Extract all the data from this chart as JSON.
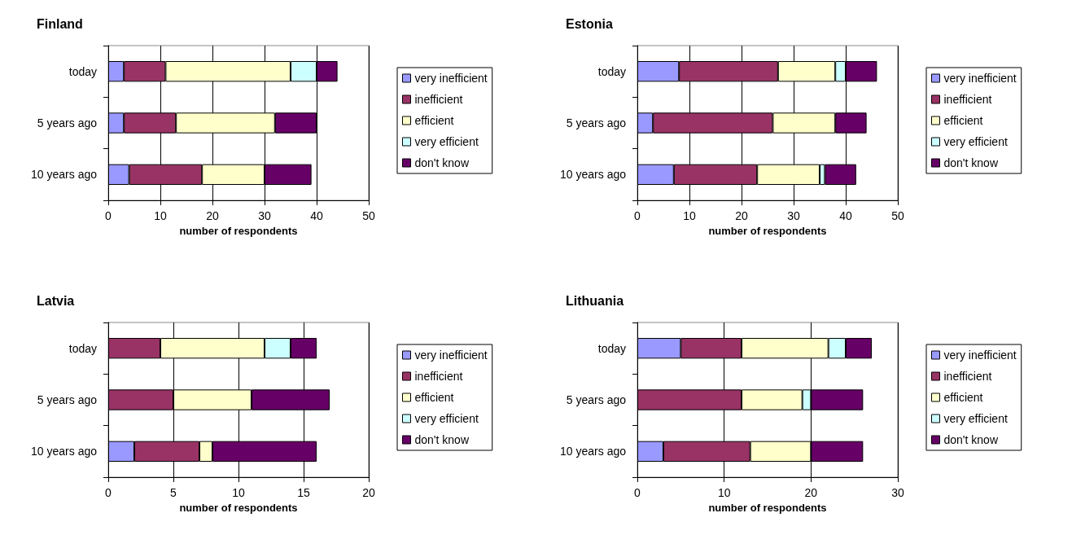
{
  "chart_data": [
    {
      "type": "bar",
      "title": "Finland",
      "orientation": "horizontal",
      "stacked": true,
      "categories": [
        "today",
        "5 years ago",
        "10 years ago"
      ],
      "xlabel": "number of respondents",
      "xlim": [
        0,
        50
      ],
      "xticks": [
        0,
        10,
        20,
        30,
        40,
        50
      ],
      "grid": "x",
      "legend": "right",
      "series": [
        {
          "name": "very inefficient",
          "color": "#9999ff",
          "values": [
            3,
            3,
            4
          ]
        },
        {
          "name": "inefficient",
          "color": "#993366",
          "values": [
            8,
            10,
            14
          ]
        },
        {
          "name": "efficient",
          "color": "#ffffcc",
          "values": [
            24,
            19,
            12
          ]
        },
        {
          "name": "very efficient",
          "color": "#ccffff",
          "values": [
            5,
            0,
            0
          ]
        },
        {
          "name": "don't know",
          "color": "#660066",
          "values": [
            4,
            8,
            9
          ]
        }
      ]
    },
    {
      "type": "bar",
      "title": "Estonia",
      "orientation": "horizontal",
      "stacked": true,
      "categories": [
        "today",
        "5 years ago",
        "10 years ago"
      ],
      "xlabel": "number of respondents",
      "xlim": [
        0,
        50
      ],
      "xticks": [
        0,
        10,
        20,
        30,
        40,
        50
      ],
      "grid": "x",
      "legend": "right",
      "series": [
        {
          "name": "very inefficient",
          "color": "#9999ff",
          "values": [
            8,
            3,
            7
          ]
        },
        {
          "name": "inefficient",
          "color": "#993366",
          "values": [
            19,
            23,
            16
          ]
        },
        {
          "name": "efficient",
          "color": "#ffffcc",
          "values": [
            11,
            12,
            12
          ]
        },
        {
          "name": "very efficient",
          "color": "#ccffff",
          "values": [
            2,
            0,
            1
          ]
        },
        {
          "name": "don't know",
          "color": "#660066",
          "values": [
            6,
            6,
            6
          ]
        }
      ]
    },
    {
      "type": "bar",
      "title": "Latvia",
      "orientation": "horizontal",
      "stacked": true,
      "categories": [
        "today",
        "5 years ago",
        "10 years ago"
      ],
      "xlabel": "number of respondents",
      "xlim": [
        0,
        20
      ],
      "xticks": [
        0,
        5,
        10,
        15,
        20
      ],
      "grid": "x",
      "legend": "right",
      "series": [
        {
          "name": "very inefficient",
          "color": "#9999ff",
          "values": [
            0,
            0,
            2
          ]
        },
        {
          "name": "inefficient",
          "color": "#993366",
          "values": [
            4,
            5,
            5
          ]
        },
        {
          "name": "efficient",
          "color": "#ffffcc",
          "values": [
            8,
            6,
            1
          ]
        },
        {
          "name": "very efficient",
          "color": "#ccffff",
          "values": [
            2,
            0,
            0
          ]
        },
        {
          "name": "don't know",
          "color": "#660066",
          "values": [
            2,
            6,
            8
          ]
        }
      ]
    },
    {
      "type": "bar",
      "title": "Lithuania",
      "orientation": "horizontal",
      "stacked": true,
      "categories": [
        "today",
        "5 years ago",
        "10 years ago"
      ],
      "xlabel": "number of respondents",
      "xlim": [
        0,
        30
      ],
      "xticks": [
        0,
        10,
        20,
        30
      ],
      "grid": "x",
      "legend": "right",
      "series": [
        {
          "name": "very inefficient",
          "color": "#9999ff",
          "values": [
            5,
            0,
            3
          ]
        },
        {
          "name": "inefficient",
          "color": "#993366",
          "values": [
            7,
            12,
            10
          ]
        },
        {
          "name": "efficient",
          "color": "#ffffcc",
          "values": [
            10,
            7,
            7
          ]
        },
        {
          "name": "very efficient",
          "color": "#ccffff",
          "values": [
            2,
            1,
            0
          ]
        },
        {
          "name": "don't know",
          "color": "#660066",
          "values": [
            3,
            6,
            6
          ]
        }
      ]
    }
  ]
}
